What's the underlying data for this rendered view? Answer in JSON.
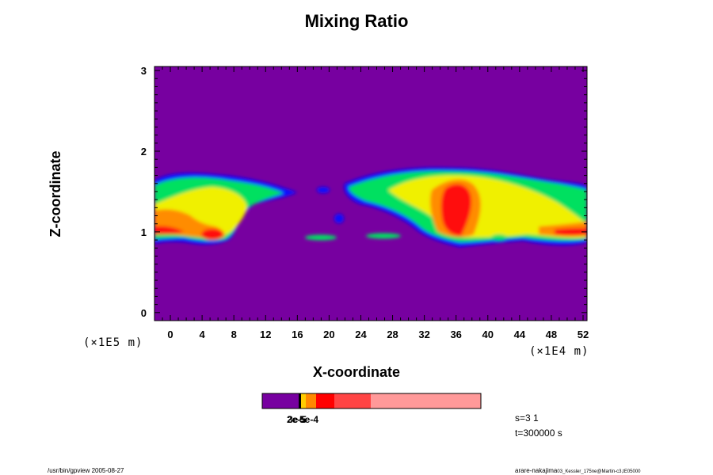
{
  "chart_data": {
    "type": "heatmap",
    "title": "Mixing Ratio",
    "xlabel": "X-coordinate",
    "ylabel": "Z-coordinate",
    "xlim": [
      -2,
      52.5
    ],
    "ylim": [
      -0.1,
      3.05
    ],
    "xticks": [
      "0",
      "4",
      "8",
      "12",
      "16",
      "20",
      "24",
      "28",
      "32",
      "36",
      "40",
      "44",
      "48",
      "52"
    ],
    "yticks": [
      "0",
      "1",
      "2",
      "3"
    ],
    "x_unit": "(×1E4 m)",
    "y_unit": "(×1E5 m)",
    "background_color": "#7700a0",
    "colorbar": {
      "colors": [
        "#7700a0",
        "#000000",
        "#ffcc00",
        "#ff8800",
        "#ff0000",
        "#ff4444",
        "#ff9999"
      ],
      "labels": [
        "2e-5",
        "3e-5",
        "5e-4"
      ]
    },
    "annotations": [
      "s=3 1",
      "t=300000 s"
    ]
  },
  "footer": {
    "left": "/usr/bin/gpview 2005-08-27",
    "right_main": "arare-nakajima",
    "right_small": "03_Kessler_175ne@Martin-c3,tE05000"
  },
  "icons": {}
}
